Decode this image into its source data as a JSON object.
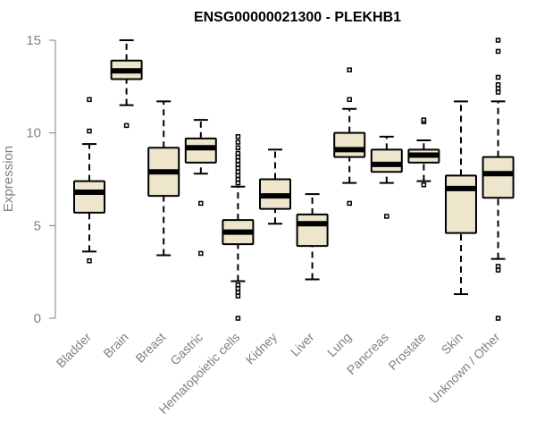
{
  "chart_data": {
    "type": "boxplot",
    "title": "ENSG00000021300 - PLEKHB1",
    "xlabel": "",
    "ylabel": "Expression",
    "ylim": [
      0,
      15
    ],
    "yticks": [
      0,
      5,
      10,
      15
    ],
    "colors": {
      "box_fill": "#ede5cc",
      "stroke": "#000000",
      "axis": "#808080"
    },
    "categories": [
      "Bladder",
      "Brain",
      "Breast",
      "Gastric",
      "Hematopoietic cells",
      "Kidney",
      "Liver",
      "Lung",
      "Pancreas",
      "Prostate",
      "Skin",
      "Unknown / Other"
    ],
    "boxes": [
      {
        "category": "Bladder",
        "min": 3.6,
        "q1": 5.7,
        "median": 6.8,
        "q3": 7.4,
        "max": 9.4,
        "outliers": [
          3.1,
          10.1,
          11.8
        ]
      },
      {
        "category": "Brain",
        "min": 11.5,
        "q1": 12.9,
        "median": 13.35,
        "q3": 13.9,
        "max": 15.0,
        "outliers": [
          10.4
        ]
      },
      {
        "category": "Breast",
        "min": 3.4,
        "q1": 6.6,
        "median": 7.9,
        "q3": 9.2,
        "max": 11.7,
        "outliers": []
      },
      {
        "category": "Gastric",
        "min": 7.8,
        "q1": 8.4,
        "median": 9.2,
        "q3": 9.7,
        "max": 10.7,
        "outliers": [
          3.5,
          6.2
        ]
      },
      {
        "category": "Hematopoietic cells",
        "min": 2.0,
        "q1": 4.0,
        "median": 4.65,
        "q3": 5.3,
        "max": 7.1,
        "outliers": [
          0.0,
          1.2,
          1.4,
          1.6,
          1.8,
          7.3,
          7.5,
          7.7,
          7.9,
          8.1,
          8.3,
          8.5,
          8.7,
          8.9,
          9.2,
          9.5,
          9.8
        ]
      },
      {
        "category": "Kidney",
        "min": 5.1,
        "q1": 5.9,
        "median": 6.6,
        "q3": 7.5,
        "max": 9.1,
        "outliers": []
      },
      {
        "category": "Liver",
        "min": 2.1,
        "q1": 3.9,
        "median": 5.1,
        "q3": 5.6,
        "max": 6.7,
        "outliers": []
      },
      {
        "category": "Lung",
        "min": 7.3,
        "q1": 8.7,
        "median": 9.1,
        "q3": 10.0,
        "max": 11.3,
        "outliers": [
          6.2,
          11.8,
          13.4
        ]
      },
      {
        "category": "Pancreas",
        "min": 7.3,
        "q1": 7.9,
        "median": 8.3,
        "q3": 9.1,
        "max": 9.8,
        "outliers": [
          5.5
        ]
      },
      {
        "category": "Prostate",
        "min": 7.4,
        "q1": 8.4,
        "median": 8.8,
        "q3": 9.1,
        "max": 9.6,
        "outliers": [
          7.2,
          10.6,
          10.7
        ]
      },
      {
        "category": "Skin",
        "min": 1.3,
        "q1": 4.6,
        "median": 7.0,
        "q3": 7.7,
        "max": 11.7,
        "outliers": []
      },
      {
        "category": "Unknown / Other",
        "min": 3.2,
        "q1": 6.5,
        "median": 7.8,
        "q3": 8.7,
        "max": 11.7,
        "outliers": [
          0.0,
          2.6,
          2.8,
          12.2,
          12.4,
          12.6,
          13.0,
          14.4,
          15.0
        ]
      }
    ]
  }
}
